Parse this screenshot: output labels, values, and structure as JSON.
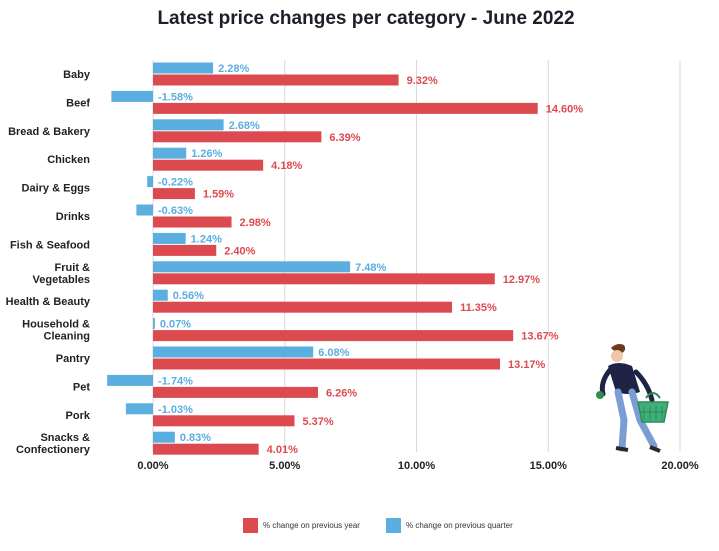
{
  "chart_data": {
    "type": "bar",
    "title": "Latest price changes per category - June 2022",
    "categories": [
      "Baby",
      "Beef",
      "Bread & Bakery",
      "Chicken",
      "Dairy & Eggs",
      "Drinks",
      "Fish & Seafood",
      "Fruit & Vegetables",
      "Health & Beauty",
      "Household & Cleaning",
      "Pantry",
      "Pet",
      "Pork",
      "Snacks & Confectionery"
    ],
    "series": [
      {
        "name": "% change on previous quarter",
        "color": "#5aaee0",
        "values": [
          2.28,
          -1.58,
          2.68,
          1.26,
          -0.22,
          -0.63,
          1.24,
          7.48,
          0.56,
          0.07,
          6.08,
          -1.74,
          -1.03,
          0.83
        ],
        "labels": [
          "2.28%",
          "-1.58%",
          "2.68%",
          "1.26%",
          "-0.22%",
          "-0.63%",
          "1.24%",
          "7.48%",
          "0.56%",
          "0.07%",
          "6.08%",
          "-1.74%",
          "-1.03%",
          "0.83%"
        ]
      },
      {
        "name": "% change on previous year",
        "color": "#dc4a4f",
        "values": [
          9.32,
          14.6,
          6.39,
          4.18,
          1.59,
          2.98,
          2.4,
          12.97,
          11.35,
          13.67,
          13.17,
          6.26,
          5.37,
          4.01
        ],
        "labels": [
          "9.32%",
          "14.60%",
          "6.39%",
          "4.18%",
          "1.59%",
          "2.98%",
          "2.40%",
          "12.97%",
          "11.35%",
          "13.67%",
          "13.17%",
          "6.26%",
          "5.37%",
          "4.01%"
        ]
      }
    ],
    "xticks": [
      0,
      5,
      10,
      15,
      20
    ],
    "xtick_labels": [
      "0.00%",
      "5.00%",
      "10.00%",
      "15.00%",
      "20.00%"
    ],
    "xlim": [
      -1.74,
      20
    ],
    "grid": "vertical",
    "legend": "bottom-center"
  },
  "legend": {
    "year_label": "% change on previous year",
    "quarter_label": "% change on previous quarter",
    "year_color": "#dc4a4f",
    "quarter_color": "#5aaee0"
  }
}
